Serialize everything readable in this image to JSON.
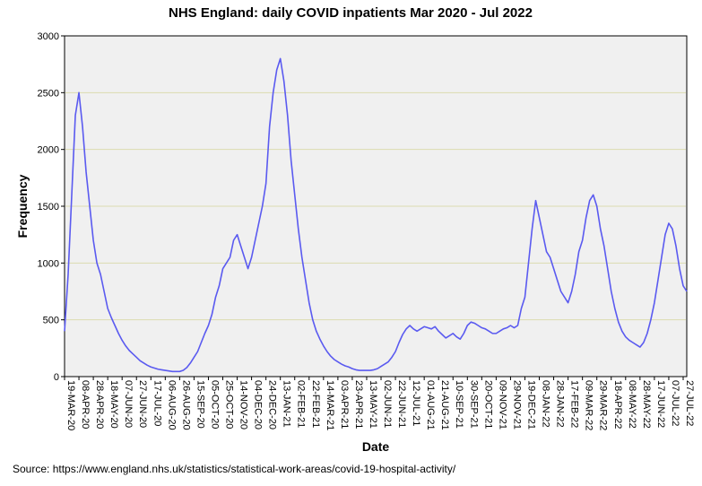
{
  "chart_data": {
    "type": "line",
    "title": "NHS England: daily COVID inpatients Mar 2020 - Jul 2022",
    "x_label": "Date",
    "y_label": "Frequency",
    "source": "Source: https://www.england.nhs.uk/statistics/statistical-work-areas/covid-19-hospital-activity/",
    "categories": [
      "19-MAR-20",
      null,
      null,
      null,
      "08-APR-20",
      null,
      null,
      null,
      "28-APR-20",
      null,
      null,
      null,
      "18-MAY-20",
      null,
      null,
      null,
      "07-JUN-20",
      null,
      null,
      null,
      "27-JUN-20",
      null,
      null,
      null,
      "17-JUL-20",
      null,
      null,
      null,
      "06-AUG-20",
      null,
      null,
      null,
      "26-AUG-20",
      null,
      null,
      null,
      "15-SEP-20",
      null,
      null,
      null,
      "05-OCT-20",
      null,
      null,
      null,
      "25-OCT-20",
      null,
      null,
      null,
      "14-NOV-20",
      null,
      null,
      null,
      "04-DEC-20",
      null,
      null,
      null,
      "24-DEC-20",
      null,
      null,
      null,
      "13-JAN-21",
      null,
      null,
      null,
      "02-FEB-21",
      null,
      null,
      null,
      "22-FEB-21",
      null,
      null,
      null,
      "14-MAR-21",
      null,
      null,
      null,
      "03-APR-21",
      null,
      null,
      null,
      "23-APR-21",
      null,
      null,
      null,
      "13-MAY-21",
      null,
      null,
      null,
      "02-JUN-21",
      null,
      null,
      null,
      "22-JUN-21",
      null,
      null,
      null,
      "12-JUL-21",
      null,
      null,
      null,
      "01-AUG-21",
      null,
      null,
      null,
      "21-AUG-21",
      null,
      null,
      null,
      "10-SEP-21",
      null,
      null,
      null,
      "30-SEP-21",
      null,
      null,
      null,
      "20-OCT-21",
      null,
      null,
      null,
      "09-NOV-21",
      null,
      null,
      null,
      "29-NOV-21",
      null,
      null,
      null,
      "19-DEC-21",
      null,
      null,
      null,
      "08-JAN-22",
      null,
      null,
      null,
      "28-JAN-22",
      null,
      null,
      null,
      "17-FEB-22",
      null,
      null,
      null,
      "09-MAR-22",
      null,
      null,
      null,
      "29-MAR-22",
      null,
      null,
      null,
      "18-APR-22",
      null,
      null,
      null,
      "08-MAY-22",
      null,
      null,
      null,
      "28-MAY-22",
      null,
      null,
      null,
      "17-JUN-22",
      null,
      null,
      null,
      "07-JUL-22",
      null,
      null,
      null,
      "27-JUL-22",
      null
    ],
    "values": [
      400,
      900,
      1600,
      2300,
      2500,
      2200,
      1800,
      1500,
      1200,
      1000,
      900,
      750,
      600,
      520,
      450,
      380,
      320,
      270,
      230,
      200,
      170,
      140,
      120,
      100,
      85,
      75,
      65,
      60,
      55,
      50,
      45,
      45,
      45,
      55,
      80,
      120,
      170,
      220,
      300,
      380,
      450,
      550,
      700,
      800,
      950,
      1000,
      1050,
      1200,
      1250,
      1150,
      1050,
      950,
      1050,
      1200,
      1350,
      1500,
      1700,
      2200,
      2500,
      2700,
      2800,
      2600,
      2300,
      1900,
      1600,
      1300,
      1050,
      850,
      650,
      500,
      400,
      330,
      270,
      220,
      180,
      150,
      130,
      110,
      95,
      85,
      70,
      60,
      55,
      55,
      55,
      55,
      60,
      70,
      90,
      110,
      130,
      170,
      220,
      300,
      370,
      420,
      450,
      420,
      400,
      420,
      440,
      430,
      420,
      440,
      400,
      370,
      340,
      360,
      380,
      350,
      330,
      380,
      450,
      480,
      470,
      450,
      430,
      420,
      400,
      380,
      380,
      400,
      420,
      430,
      450,
      430,
      450,
      600,
      700,
      1000,
      1300,
      1550,
      1400,
      1250,
      1100,
      1050,
      950,
      850,
      750,
      700,
      650,
      750,
      900,
      1100,
      1200,
      1400,
      1550,
      1600,
      1500,
      1300,
      1150,
      950,
      750,
      600,
      480,
      400,
      350,
      320,
      300,
      280,
      260,
      300,
      380,
      500,
      650,
      850,
      1050,
      1250,
      1350,
      1300,
      1150,
      950,
      800,
      750
    ],
    "color": "#5a5af0",
    "grid_color": "#dcdcb0",
    "plot_background": "#f0f0f0",
    "ylim": [
      0,
      3000
    ],
    "yticks": [
      0,
      500,
      1000,
      1500,
      2000,
      2500,
      3000
    ],
    "grid": true
  }
}
